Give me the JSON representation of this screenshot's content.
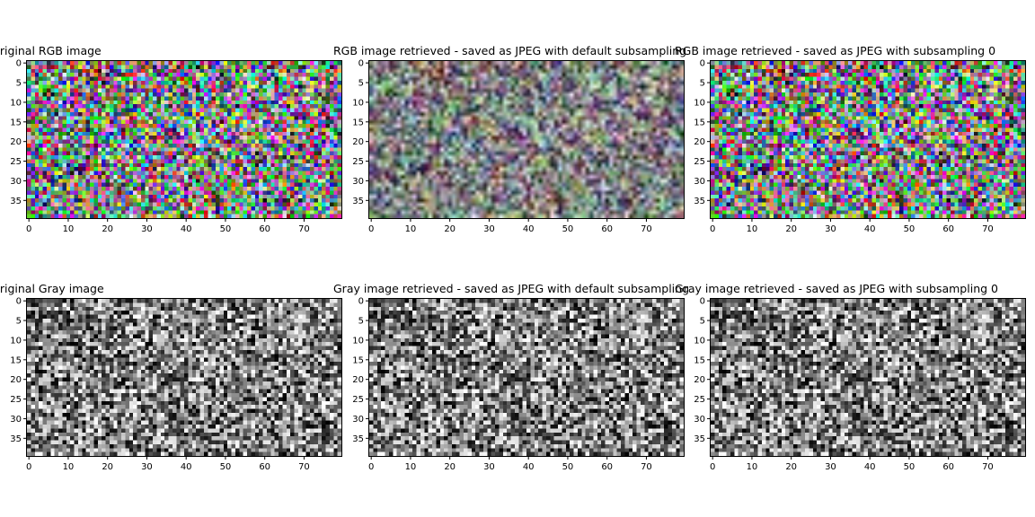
{
  "chart_data": [
    {
      "type": "heatmap",
      "title": "Original RGB image",
      "mode": "rgb",
      "variant": "original",
      "seed": 11,
      "width": 80,
      "height": 40,
      "xticks": [
        0,
        10,
        20,
        30,
        40,
        50,
        60,
        70
      ],
      "yticks": [
        0,
        5,
        10,
        15,
        20,
        25,
        30,
        35
      ],
      "xlim": [
        -0.5,
        79.5
      ],
      "ylim": [
        39.5,
        -0.5
      ]
    },
    {
      "type": "heatmap",
      "title": "RGB image retrieved - saved as JPEG with default subsampling",
      "mode": "rgb",
      "variant": "blurred",
      "seed": 11,
      "width": 80,
      "height": 40,
      "xticks": [
        0,
        10,
        20,
        30,
        40,
        50,
        60,
        70
      ],
      "yticks": [
        0,
        5,
        10,
        15,
        20,
        25,
        30,
        35
      ],
      "xlim": [
        -0.5,
        79.5
      ],
      "ylim": [
        39.5,
        -0.5
      ]
    },
    {
      "type": "heatmap",
      "title": "RGB image retrieved - saved as JPEG with subsampling 0",
      "mode": "rgb",
      "variant": "original",
      "seed": 11,
      "width": 80,
      "height": 40,
      "xticks": [
        0,
        10,
        20,
        30,
        40,
        50,
        60,
        70
      ],
      "yticks": [
        0,
        5,
        10,
        15,
        20,
        25,
        30,
        35
      ],
      "xlim": [
        -0.5,
        79.5
      ],
      "ylim": [
        39.5,
        -0.5
      ]
    },
    {
      "type": "heatmap",
      "title": "Original Gray image",
      "mode": "gray",
      "variant": "original",
      "seed": 29,
      "width": 80,
      "height": 40,
      "xticks": [
        0,
        10,
        20,
        30,
        40,
        50,
        60,
        70
      ],
      "yticks": [
        0,
        5,
        10,
        15,
        20,
        25,
        30,
        35
      ],
      "xlim": [
        -0.5,
        79.5
      ],
      "ylim": [
        39.5,
        -0.5
      ]
    },
    {
      "type": "heatmap",
      "title": "Gray image retrieved - saved as JPEG with default subsampling",
      "mode": "gray",
      "variant": "original",
      "seed": 29,
      "width": 80,
      "height": 40,
      "xticks": [
        0,
        10,
        20,
        30,
        40,
        50,
        60,
        70
      ],
      "yticks": [
        0,
        5,
        10,
        15,
        20,
        25,
        30,
        35
      ],
      "xlim": [
        -0.5,
        79.5
      ],
      "ylim": [
        39.5,
        -0.5
      ]
    },
    {
      "type": "heatmap",
      "title": "Gray image retrieved - saved as JPEG with subsampling 0",
      "mode": "gray",
      "variant": "original",
      "seed": 29,
      "width": 80,
      "height": 40,
      "xticks": [
        0,
        10,
        20,
        30,
        40,
        50,
        60,
        70
      ],
      "yticks": [
        0,
        5,
        10,
        15,
        20,
        25,
        30,
        35
      ],
      "xlim": [
        -0.5,
        79.5
      ],
      "ylim": [
        39.5,
        -0.5
      ]
    }
  ]
}
